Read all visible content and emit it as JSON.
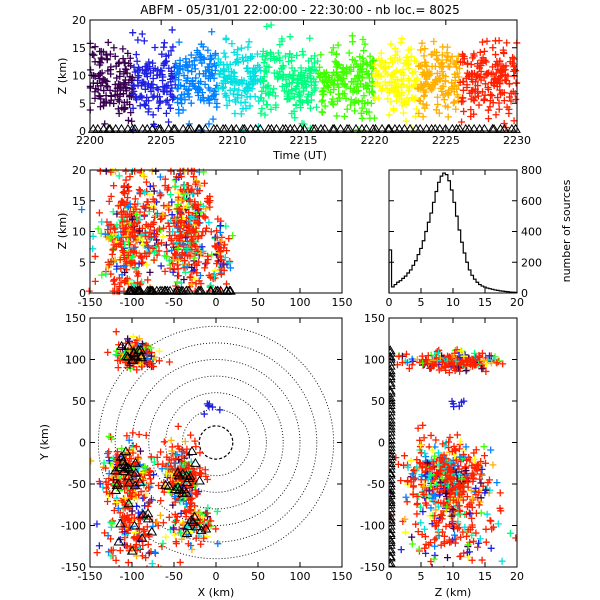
{
  "chart_data": [
    {
      "id": "time-height",
      "type": "scatter",
      "title": "ABFM - 05/31/01 22:00:00 - 22:30:00 - nb loc.=    8025",
      "xlabel": "Time (UT)",
      "ylabel": "Z (km)",
      "xlim": [
        2200,
        2230
      ],
      "ylim": [
        0,
        20
      ],
      "xticks": [
        "2200",
        "2205",
        "2210",
        "2215",
        "2220",
        "2225",
        "2230"
      ],
      "yticks": [
        "0",
        "5",
        "10",
        "15",
        "20"
      ],
      "color_encoding": "time",
      "bands": [
        {
          "x0": 2200,
          "x1": 2203,
          "color": "#3a0050"
        },
        {
          "x0": 2203,
          "x1": 2206,
          "color": "#2020e0"
        },
        {
          "x0": 2206,
          "x1": 2209,
          "color": "#0080ff"
        },
        {
          "x0": 2209,
          "x1": 2212,
          "color": "#00e0e0"
        },
        {
          "x0": 2212,
          "x1": 2216,
          "color": "#00ff80"
        },
        {
          "x0": 2216,
          "x1": 2220,
          "color": "#40ff00"
        },
        {
          "x0": 2220,
          "x1": 2223,
          "color": "#ffff00"
        },
        {
          "x0": 2223,
          "x1": 2226,
          "color": "#ffb000"
        },
        {
          "x0": 2226,
          "x1": 2230,
          "color": "#ff2000"
        }
      ]
    },
    {
      "id": "x-height",
      "type": "scatter",
      "xlabel": "",
      "ylabel": "Z (km)",
      "xlim": [
        -150,
        150
      ],
      "ylim": [
        0,
        20
      ],
      "xticks": [
        "-150",
        "-100",
        "-50",
        "0",
        "50",
        "100",
        "150"
      ],
      "yticks": [
        "0",
        "5",
        "10",
        "15",
        "20"
      ],
      "clusters": [
        {
          "x": -100,
          "z": 9,
          "sx": 18,
          "sz": 5,
          "n": 380
        },
        {
          "x": -35,
          "z": 11,
          "sx": 15,
          "sz": 5,
          "n": 340
        },
        {
          "x": 5,
          "z": 6,
          "sx": 6,
          "sz": 3,
          "n": 60
        }
      ],
      "ground_markers": "triangles at station positions"
    },
    {
      "id": "height-histogram",
      "type": "bar",
      "ylabel": "number of sources",
      "xlim": [
        0,
        20
      ],
      "ylim": [
        0,
        800
      ],
      "xticks": [
        "0",
        "5",
        "10",
        "15",
        "20"
      ],
      "yticks": [
        "0",
        "200",
        "400",
        "600",
        "800"
      ],
      "bin_width": 0.4,
      "bin_starts": [
        0,
        0.4,
        0.8,
        1.2,
        1.6,
        2.0,
        2.4,
        2.8,
        3.2,
        3.6,
        4.0,
        4.4,
        4.8,
        5.2,
        5.6,
        6.0,
        6.4,
        6.8,
        7.2,
        7.6,
        8.0,
        8.4,
        8.8,
        9.2,
        9.6,
        10.0,
        10.4,
        10.8,
        11.2,
        11.6,
        12.0,
        12.4,
        12.8,
        13.2,
        13.6,
        14.0,
        14.4,
        14.8,
        15.2,
        15.6,
        16.0,
        16.4,
        16.8,
        17.2,
        17.6,
        18.0,
        18.4,
        18.8,
        19.2,
        19.6
      ],
      "values": [
        280,
        40,
        55,
        70,
        80,
        95,
        110,
        130,
        150,
        180,
        210,
        250,
        290,
        340,
        400,
        460,
        520,
        590,
        660,
        720,
        760,
        780,
        770,
        730,
        670,
        590,
        500,
        410,
        330,
        260,
        200,
        150,
        115,
        90,
        70,
        55,
        45,
        38,
        32,
        28,
        24,
        20,
        17,
        14,
        12,
        10,
        8,
        6,
        5,
        4
      ]
    },
    {
      "id": "plan-view",
      "type": "scatter",
      "xlabel": "X (km)",
      "ylabel": "Y (km)",
      "xlim": [
        -150,
        150
      ],
      "ylim": [
        -150,
        150
      ],
      "xticks": [
        "-150",
        "-100",
        "-50",
        "0",
        "50",
        "100",
        "150"
      ],
      "yticks": [
        "-150",
        "-100",
        "-50",
        "0",
        "50",
        "100",
        "150"
      ],
      "range_rings_km": [
        20,
        40,
        60,
        80,
        100,
        120,
        140
      ],
      "clusters": [
        {
          "x": -95,
          "y": 105,
          "sx": 12,
          "sy": 8,
          "n": 160
        },
        {
          "x": -105,
          "y": -40,
          "sx": 15,
          "sy": 20,
          "n": 230
        },
        {
          "x": -40,
          "y": -40,
          "sx": 12,
          "sy": 18,
          "n": 220
        },
        {
          "x": -100,
          "y": -110,
          "sx": 18,
          "sy": 20,
          "n": 120
        },
        {
          "x": -25,
          "y": -100,
          "sx": 15,
          "sy": 12,
          "n": 100
        }
      ]
    },
    {
      "id": "height-y",
      "type": "scatter",
      "xlabel": "Z (km)",
      "ylabel": "",
      "xlim": [
        0,
        20
      ],
      "ylim": [
        -150,
        150
      ],
      "xticks": [
        "0",
        "5",
        "10",
        "15",
        "20"
      ],
      "yticks": [
        "-150",
        "-100",
        "-50",
        "0",
        "50",
        "100",
        "150"
      ],
      "clusters": [
        {
          "z": 10,
          "y": 98,
          "sz": 3.5,
          "sy": 5,
          "n": 230
        },
        {
          "z": 9,
          "y": -40,
          "sz": 3,
          "sy": 20,
          "n": 420
        },
        {
          "z": 10,
          "y": -100,
          "sz": 4,
          "sy": 22,
          "n": 150
        }
      ]
    }
  ]
}
